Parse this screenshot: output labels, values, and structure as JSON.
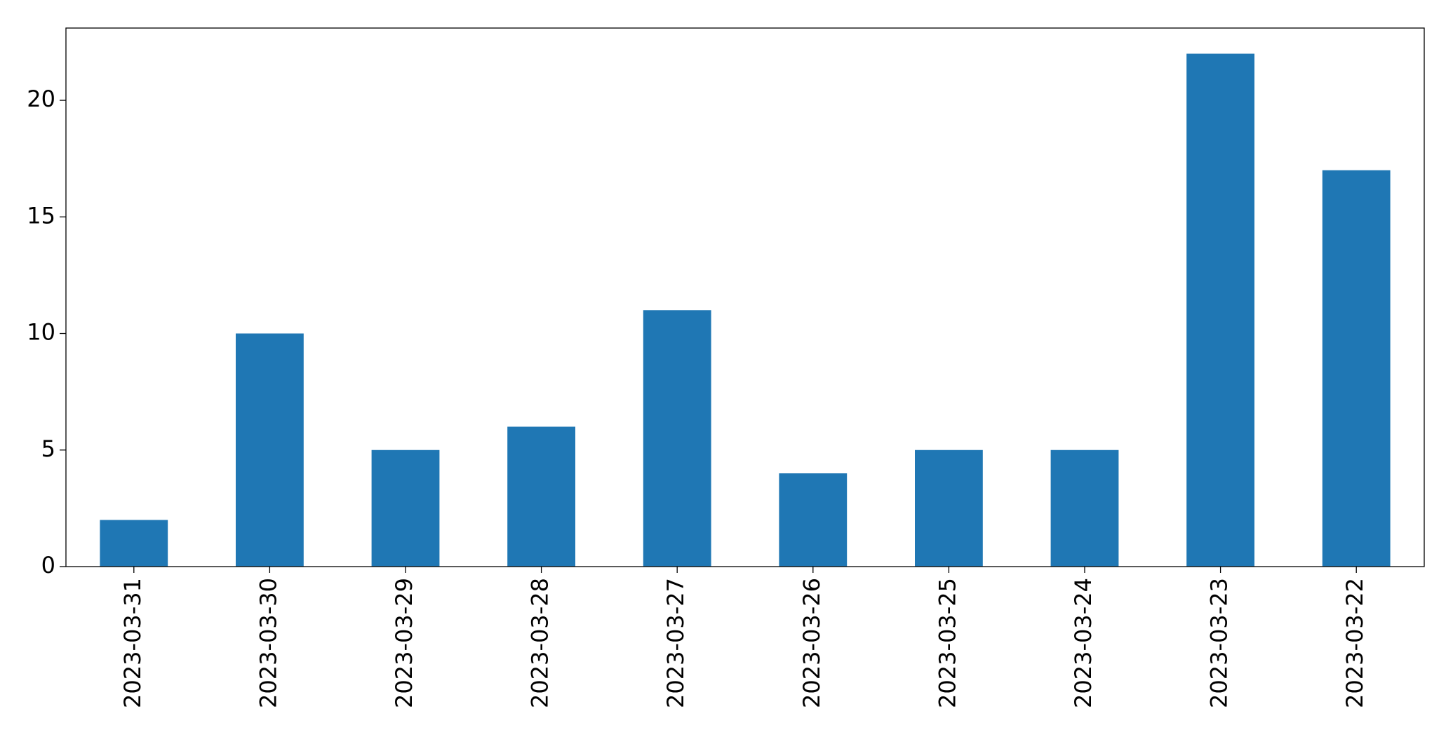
{
  "chart_data": {
    "type": "bar",
    "categories": [
      "2023-03-31",
      "2023-03-30",
      "2023-03-29",
      "2023-03-28",
      "2023-03-27",
      "2023-03-26",
      "2023-03-25",
      "2023-03-24",
      "2023-03-23",
      "2023-03-22"
    ],
    "values": [
      2,
      10,
      5,
      6,
      11,
      4,
      5,
      5,
      22,
      17
    ],
    "color": "#1f77b4",
    "ylim": [
      0,
      23.1
    ],
    "yticks": [
      0,
      5,
      10,
      15,
      20
    ],
    "grid": false
  }
}
